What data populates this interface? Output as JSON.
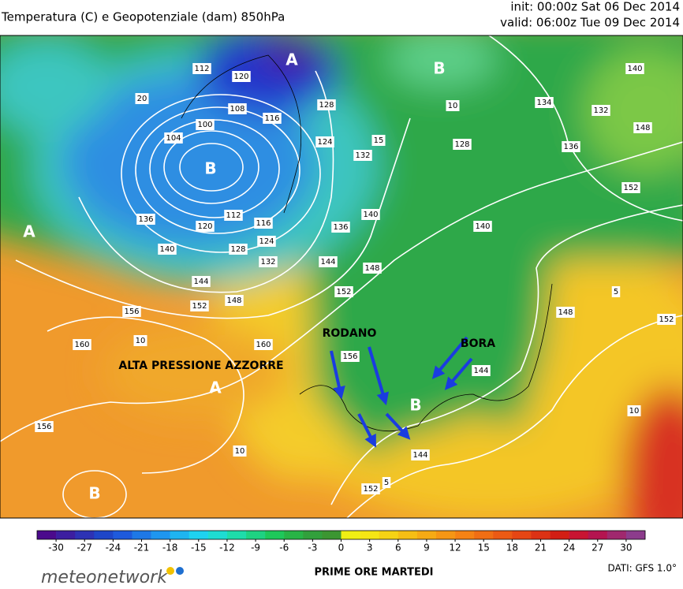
{
  "header": {
    "title": "Temperatura (C) e Geopotenziale (dam) 850hPa",
    "init": "init: 00:00z Sat 06 Dec 2014",
    "valid": "valid: 06:00z Tue 09 Dec 2014"
  },
  "map": {
    "centers": [
      "A",
      "B",
      "B",
      "A",
      "A",
      "B",
      "B"
    ],
    "contour_labels": [
      112,
      120,
      108,
      116,
      100,
      104,
      128,
      124,
      132,
      15,
      20,
      136,
      140,
      120,
      112,
      116,
      124,
      128,
      132,
      144,
      148,
      152,
      156,
      160,
      160,
      10,
      136,
      140,
      144,
      148,
      152,
      156,
      144,
      144,
      152,
      156,
      10,
      5,
      140,
      148,
      152,
      148,
      136,
      132,
      134,
      140,
      128,
      152,
      10,
      10,
      5
    ],
    "annotations": [
      "RODANO",
      "BORA",
      "ALTA PRESSIONE AZZORRE"
    ]
  },
  "colorbar": {
    "lim": [
      -32,
      32
    ],
    "ticks": [
      -30,
      -27,
      -24,
      -21,
      -18,
      -15,
      -12,
      -9,
      -6,
      -3,
      0,
      3,
      6,
      9,
      12,
      15,
      18,
      21,
      24,
      27,
      30
    ],
    "colors": [
      "#4b0a8c",
      "#3c1ea0",
      "#2d32b4",
      "#1e46c8",
      "#1e5adc",
      "#1e78e6",
      "#1e96f0",
      "#1eb4f0",
      "#1ed2f0",
      "#1edcd2",
      "#1edcaa",
      "#1ed282",
      "#1ec85a",
      "#28b446",
      "#32a03c",
      "#3c9632",
      "#f0f014",
      "#f5e614",
      "#f5d214",
      "#f5be14",
      "#f5aa14",
      "#f59614",
      "#f58214",
      "#f06e14",
      "#eb5a14",
      "#e64614",
      "#dc3214",
      "#d21e14",
      "#c81432",
      "#b41450",
      "#a0286e",
      "#8c3c8c"
    ]
  },
  "footer": {
    "logo": "meteonetwork",
    "caption": "PRIME ORE MARTEDI",
    "source": "DATI:  GFS  1.0°"
  }
}
